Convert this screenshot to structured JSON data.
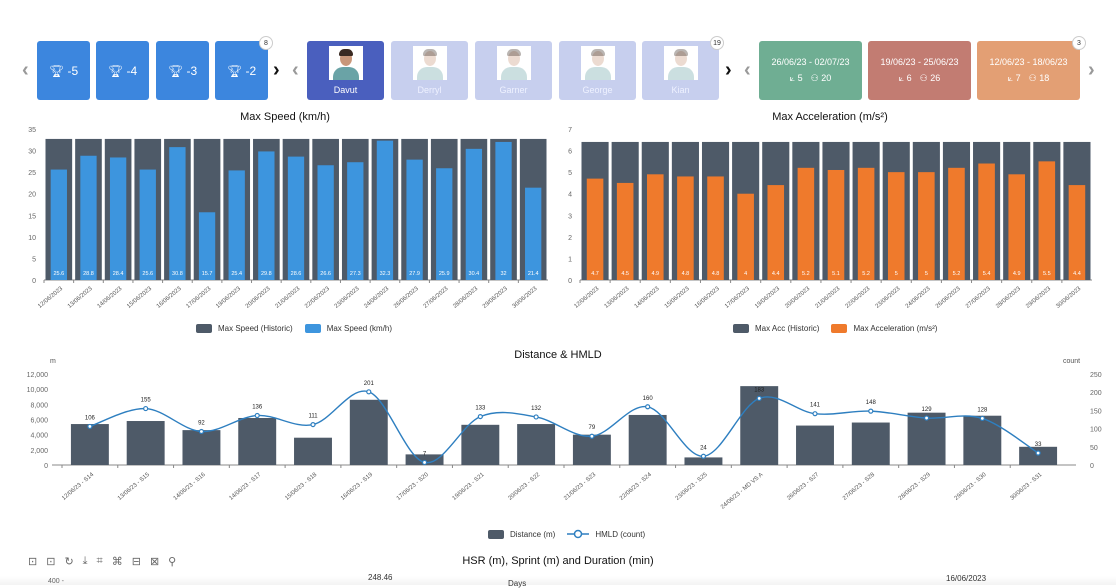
{
  "selectors": {
    "trophies": [
      {
        "label": "-5"
      },
      {
        "label": "-4"
      },
      {
        "label": "-3"
      },
      {
        "label": "-2"
      }
    ],
    "trophy_badge": "8",
    "players": [
      {
        "name": "Davut"
      },
      {
        "name": "Derryl"
      },
      {
        "name": "Garner"
      },
      {
        "name": "George"
      },
      {
        "name": "Kian"
      }
    ],
    "player_badge": "19",
    "weeks": [
      {
        "range": "26/06/23 - 02/07/23",
        "sessions": "5",
        "players": "20",
        "color": "#6fae93"
      },
      {
        "range": "19/06/23 - 25/06/23",
        "sessions": "6",
        "players": "26",
        "color": "#c27c72"
      },
      {
        "range": "12/06/23 - 18/06/23",
        "sessions": "7",
        "players": "18",
        "color": "#e39f74"
      }
    ],
    "week_badge": "3",
    "icons": {
      "prev": "chevron-left-icon",
      "next": "chevron-right-icon",
      "trophy": "trophy-icon",
      "sessions": "chart-line-icon",
      "players": "people-icon"
    }
  },
  "chart_data": [
    {
      "type": "bar",
      "title": "Max Speed (km/h)",
      "categories": [
        "12/06/2023",
        "13/06/2023",
        "14/06/2023",
        "15/06/2023",
        "16/06/2023",
        "17/06/2023",
        "19/06/2023",
        "20/06/2023",
        "21/06/2023",
        "22/06/2023",
        "23/06/2023",
        "24/06/2023",
        "26/06/2023",
        "27/06/2023",
        "28/06/2023",
        "29/06/2023",
        "30/06/2023"
      ],
      "series": [
        {
          "name": "Max Speed (Historic)",
          "color": "#4e5a68",
          "values": [
            32.7,
            32.7,
            32.7,
            32.7,
            32.7,
            32.7,
            32.7,
            32.7,
            32.7,
            32.7,
            32.7,
            32.7,
            32.7,
            32.7,
            32.7,
            32.7,
            32.7
          ]
        },
        {
          "name": "Max Speed (km/h)",
          "color": "#3d95de",
          "values": [
            25.6,
            28.8,
            28.4,
            25.6,
            30.8,
            15.7,
            25.4,
            29.8,
            28.6,
            26.6,
            27.3,
            32.3,
            27.9,
            25.9,
            30.4,
            32,
            21.4
          ]
        }
      ],
      "yticks": [
        "0",
        "5",
        "10",
        "15",
        "20",
        "25",
        "30",
        "35"
      ],
      "ylim": [
        0,
        35
      ]
    },
    {
      "type": "bar",
      "title": "Max Acceleration (m/s²)",
      "categories": [
        "12/06/2023",
        "13/06/2023",
        "14/06/2023",
        "15/06/2023",
        "16/06/2023",
        "17/06/2023",
        "19/06/2023",
        "20/06/2023",
        "21/06/2023",
        "22/06/2023",
        "23/06/2023",
        "24/06/2023",
        "26/06/2023",
        "27/06/2023",
        "28/06/2023",
        "29/06/2023",
        "30/06/2023"
      ],
      "series": [
        {
          "name": "Max Acc (Historic)",
          "color": "#4e5a68",
          "values": [
            6.4,
            6.4,
            6.4,
            6.4,
            6.4,
            6.4,
            6.4,
            6.4,
            6.4,
            6.4,
            6.4,
            6.4,
            6.4,
            6.4,
            6.4,
            6.4,
            6.4
          ]
        },
        {
          "name": "Max Acceleration (m/s²)",
          "color": "#ef7a2c",
          "values": [
            4.7,
            4.5,
            4.9,
            4.8,
            4.8,
            4,
            4.4,
            5.2,
            5.1,
            5.2,
            5,
            5,
            5.2,
            5.4,
            4.9,
            5.5,
            4.4
          ]
        }
      ],
      "yticks": [
        "0",
        "1",
        "2",
        "3",
        "4",
        "5",
        "6",
        "7"
      ],
      "ylim": [
        0,
        7
      ]
    },
    {
      "type": "bar+line",
      "title": "Distance & HMLD",
      "left_axis_label": "m",
      "right_axis_label": "count",
      "categories": [
        "12/06/23 - S14",
        "13/06/23 - S15",
        "14/06/23 - S16",
        "14/06/23 - S17",
        "15/06/23 - S18",
        "16/06/23 - S19",
        "17/06/23 - S20",
        "19/06/23 - S21",
        "20/06/23 - S22",
        "21/06/23 - S23",
        "22/06/23 - S24",
        "23/06/23 - S25",
        "24/06/23 - MD VS A",
        "26/06/23 - S27",
        "27/06/23 - S28",
        "28/06/23 - S29",
        "29/06/23 - S30",
        "30/06/23 - S31"
      ],
      "series": [
        {
          "name": "Distance (m)",
          "type": "bar",
          "color": "#4e5a68",
          "values": [
            5400,
            5800,
            4600,
            6200,
            3600,
            8600,
            1400,
            5300,
            5400,
            4000,
            6600,
            1000,
            10400,
            5200,
            5600,
            6900,
            6500,
            2400
          ]
        },
        {
          "name": "HMLD (count)",
          "type": "line",
          "color": "#2e7fc0",
          "values": [
            106,
            155,
            92,
            136,
            111,
            201,
            7,
            133,
            132,
            79,
            160,
            24,
            183,
            141,
            148,
            129,
            128,
            33
          ]
        }
      ],
      "yticks_left": [
        "0",
        "2,000",
        "4,000",
        "6,000",
        "8,000",
        "10,000",
        "12,000"
      ],
      "yticks_right": [
        "0",
        "50",
        "100",
        "150",
        "200",
        "250"
      ],
      "ylim_left": [
        0,
        12000
      ],
      "ylim_right": [
        0,
        250
      ]
    }
  ],
  "bottom": {
    "title": "HSR (m), Sprint (m) and Duration (min)",
    "tick_partial": "400 -",
    "peak_label": "248.46",
    "axis_label": "Days",
    "date_label": "16/06/2023",
    "toolbox": [
      "⊡",
      "⊡",
      "↻",
      "⤓",
      "⌗",
      "⌘",
      "⊟",
      "⊠",
      "⚲"
    ]
  }
}
